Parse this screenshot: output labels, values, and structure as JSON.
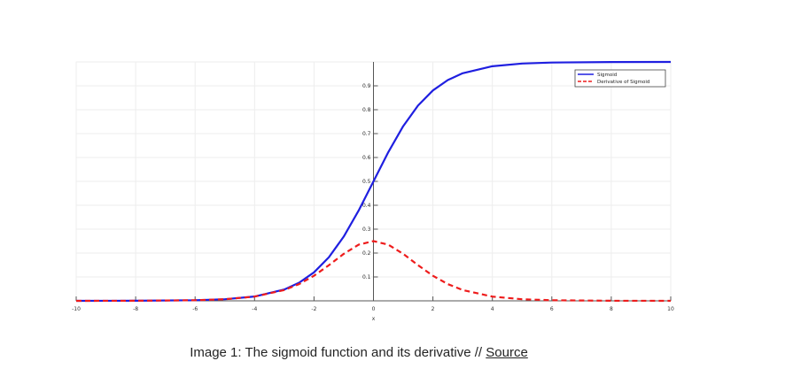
{
  "chart_data": {
    "type": "line",
    "xlabel": "x",
    "ylabel": "",
    "xlim": [
      -10,
      10
    ],
    "ylim": [
      0,
      1
    ],
    "x_ticks": [
      -10,
      -8,
      -6,
      -4,
      -2,
      0,
      2,
      4,
      6,
      8,
      10
    ],
    "x_tick_labels": [
      "-10",
      "-8",
      "-6",
      "-4",
      "-2",
      "0",
      "2",
      "4",
      "6",
      "8",
      "10"
    ],
    "y_ticks": [
      0.1,
      0.2,
      0.3,
      0.4,
      0.5,
      0.6,
      0.7,
      0.8,
      0.9
    ],
    "y_tick_labels": [
      "0.1",
      "0.2",
      "0.3",
      "0.4",
      "0.5",
      "0.6",
      "0.7",
      "0.8",
      "0.9"
    ],
    "grid": true,
    "legend_position": "top-right",
    "x": [
      -10,
      -8,
      -6,
      -5,
      -4,
      -3,
      -2.5,
      -2,
      -1.5,
      -1,
      -0.5,
      0,
      0.5,
      1,
      1.5,
      2,
      2.5,
      3,
      4,
      5,
      6,
      8,
      10
    ],
    "series": [
      {
        "name": "Sigmoid",
        "color": "#1f1fe0",
        "style": "solid",
        "values": [
          4.54e-05,
          0.000335,
          0.00247,
          0.00669,
          0.018,
          0.0474,
          0.0759,
          0.1192,
          0.1824,
          0.2689,
          0.3775,
          0.5,
          0.6225,
          0.7311,
          0.8176,
          0.8808,
          0.9241,
          0.9526,
          0.982,
          0.9933,
          0.9975,
          0.99966,
          0.99995
        ]
      },
      {
        "name": "Derivative of Sigmoid",
        "color": "#ee1c1c",
        "style": "dashed",
        "values": [
          4.54e-05,
          0.000335,
          0.00247,
          0.00665,
          0.0177,
          0.0452,
          0.0701,
          0.105,
          0.1491,
          0.1966,
          0.235,
          0.25,
          0.235,
          0.1966,
          0.1491,
          0.105,
          0.0701,
          0.0452,
          0.0177,
          0.00665,
          0.00247,
          0.000335,
          4.54e-05
        ]
      }
    ]
  },
  "caption": {
    "text": "Image 1: The sigmoid function and its derivative // ",
    "link_text": "Source"
  }
}
